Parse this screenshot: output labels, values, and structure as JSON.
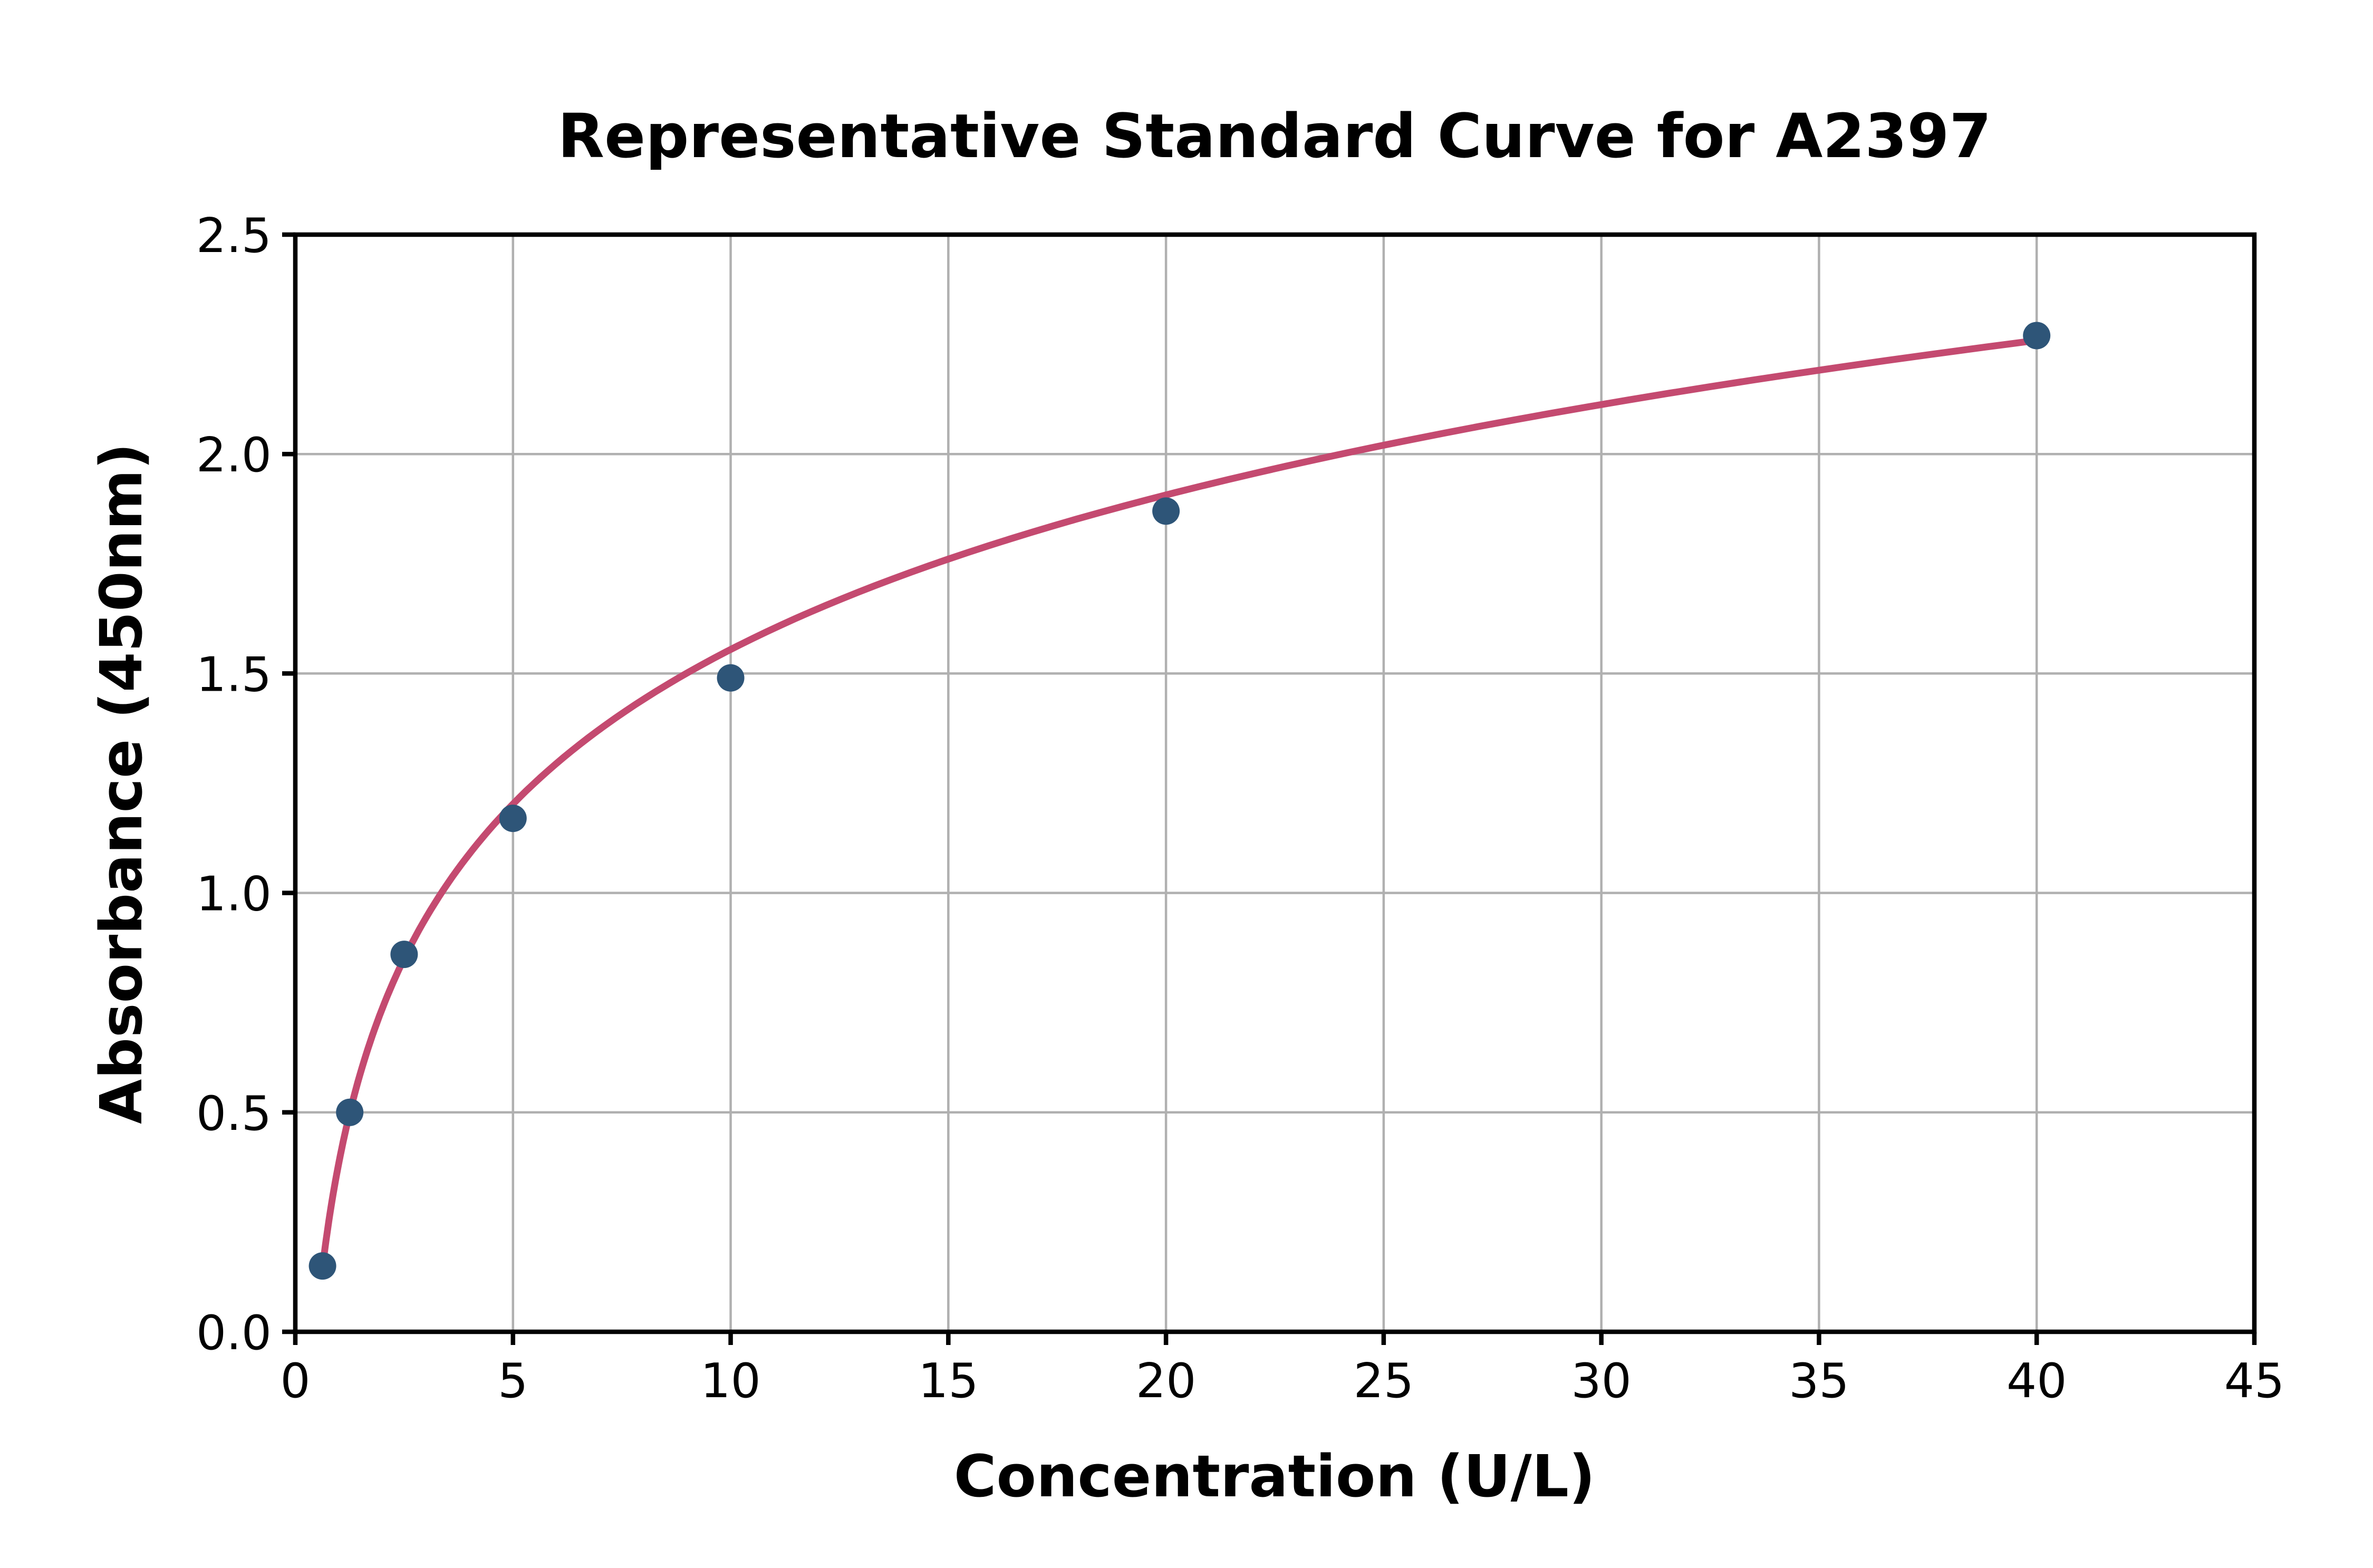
{
  "chart_data": {
    "type": "scatter",
    "title": "Representative Standard Curve for A2397",
    "xlabel": "Concentration (U/L)",
    "ylabel": "Absorbance (450nm)",
    "xlim": [
      0,
      45
    ],
    "ylim": [
      0,
      2.5
    ],
    "xticks": [
      0,
      5,
      10,
      15,
      20,
      25,
      30,
      35,
      40,
      45
    ],
    "yticks": [
      0.0,
      0.5,
      1.0,
      1.5,
      2.0,
      2.5
    ],
    "grid": true,
    "legend": "none",
    "points": [
      {
        "x": 0.625,
        "y": 0.15
      },
      {
        "x": 1.25,
        "y": 0.5
      },
      {
        "x": 2.5,
        "y": 0.86
      },
      {
        "x": 5,
        "y": 1.17
      },
      {
        "x": 10,
        "y": 1.49
      },
      {
        "x": 20,
        "y": 1.87
      },
      {
        "x": 40,
        "y": 2.27
      }
    ],
    "fit_curve": {
      "type": "logarithmic",
      "formula": "y = a + b*ln(x)",
      "a": 0.385,
      "b": 0.508,
      "x_start": 0.625,
      "x_end": 40
    },
    "colors": {
      "point": "#2e5578",
      "curve": "#c44a70",
      "grid": "#b0b0b0",
      "axis": "#000000",
      "background": "#ffffff"
    }
  }
}
